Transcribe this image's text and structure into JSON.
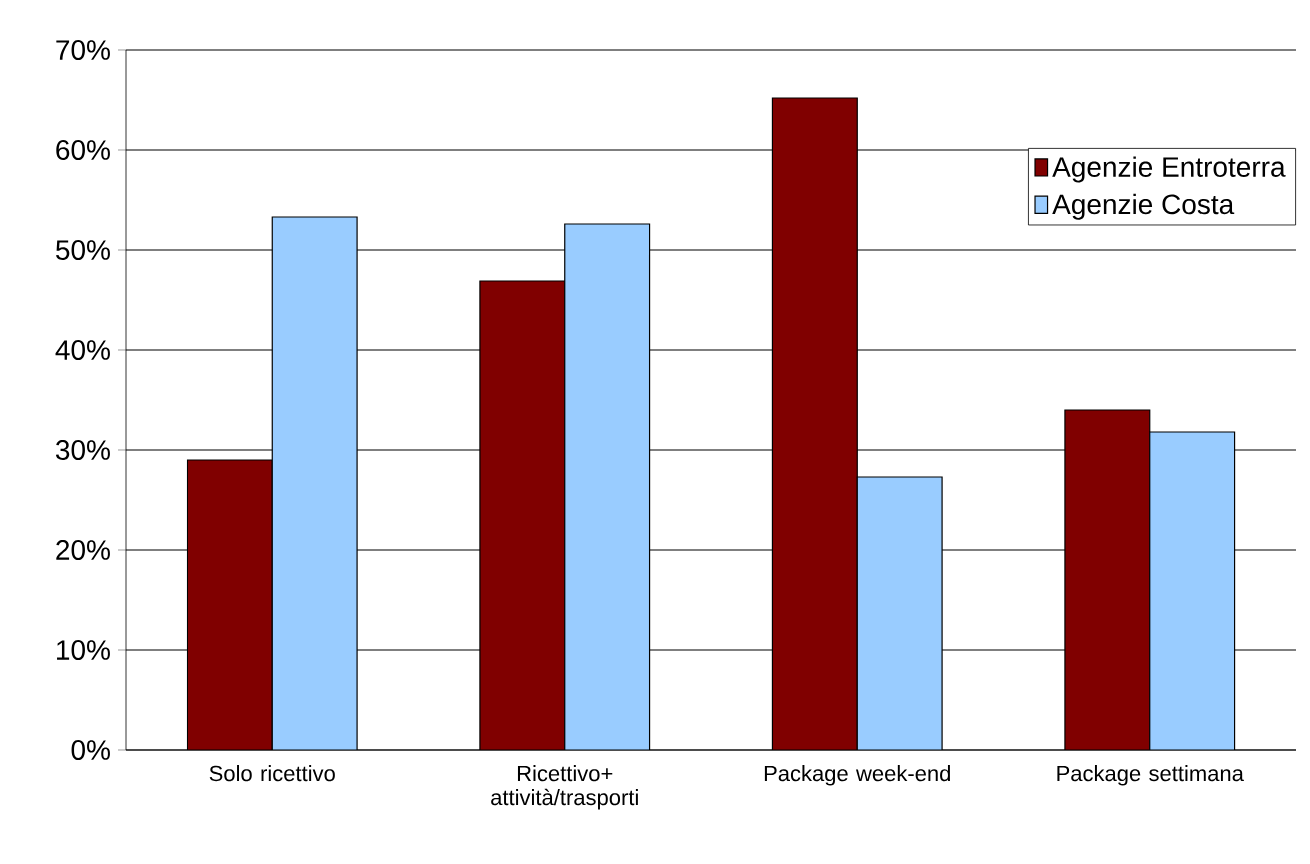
{
  "chart_data": {
    "type": "bar",
    "categories": [
      "Solo ricettivo",
      "Ricettivo+ attività/trasporti",
      "Package week-end",
      "Package settimana"
    ],
    "series": [
      {
        "name": "Agenzie Entroterra",
        "color": "#800000",
        "values": [
          29.0,
          46.9,
          65.2,
          34.0
        ]
      },
      {
        "name": "Agenzie Costa",
        "color": "#99ccff",
        "values": [
          53.3,
          52.6,
          27.3,
          31.8
        ]
      }
    ],
    "ylim": [
      0,
      70
    ],
    "yticks": [
      {
        "value": 0,
        "label": "0%"
      },
      {
        "value": 10,
        "label": "10%"
      },
      {
        "value": 20,
        "label": "20%"
      },
      {
        "value": 30,
        "label": "30%"
      },
      {
        "value": 40,
        "label": "40%"
      },
      {
        "value": 50,
        "label": "50%"
      },
      {
        "value": 60,
        "label": "60%"
      },
      {
        "value": 70,
        "label": "70%"
      }
    ],
    "grid": "y",
    "legend": "top right"
  }
}
